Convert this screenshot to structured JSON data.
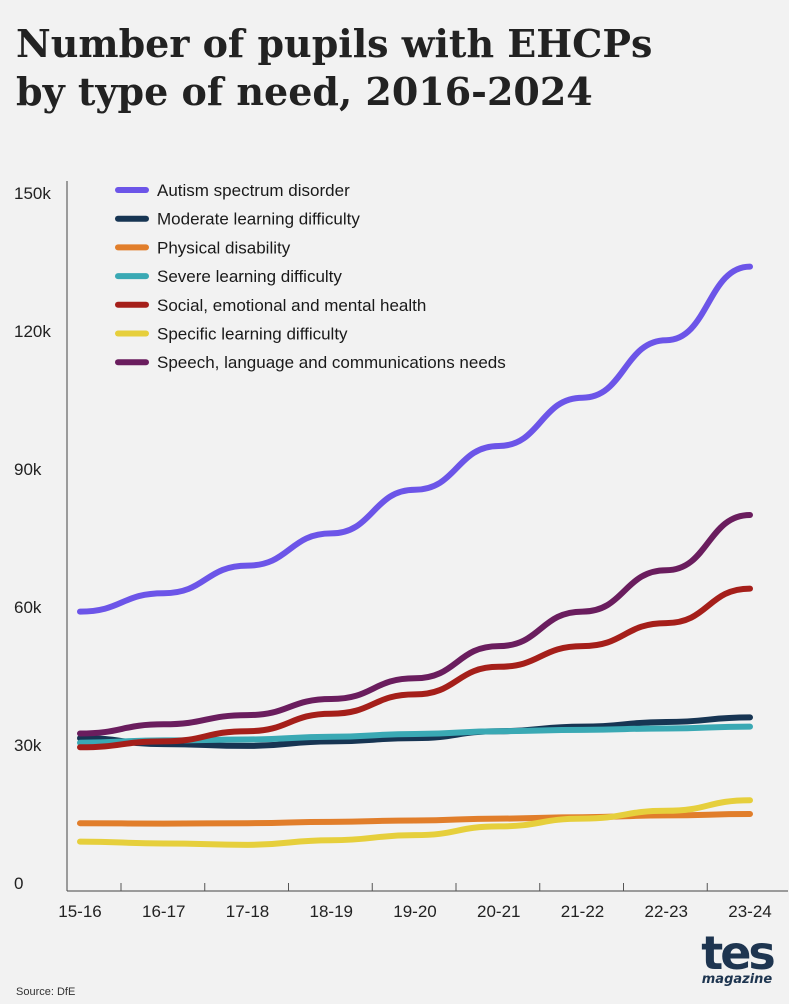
{
  "title_lines": [
    "Number of pupils with EHCPs",
    "by type of need, 2016-2024"
  ],
  "source": "Source: DfE",
  "brand": {
    "word": "tes",
    "sub": "magazine"
  },
  "chart_data": {
    "type": "line",
    "title": "Number of pupils with EHCPs by type of need, 2016-2024",
    "xlabel": "",
    "ylabel": "",
    "x": [
      "15-16",
      "16-17",
      "17-18",
      "18-19",
      "19-20",
      "20-21",
      "21-22",
      "22-23",
      "23-24"
    ],
    "ylim": [
      0,
      150000
    ],
    "yticks": [
      0,
      30000,
      60000,
      90000,
      120000,
      150000
    ],
    "ytick_labels": [
      "0",
      "30k",
      "60k",
      "90k",
      "120k",
      "150k"
    ],
    "grid": false,
    "legend_position": "top-left",
    "series": [
      {
        "name": "Autism spectrum disorder",
        "color": "#6c55e8",
        "values": [
          59000,
          63000,
          69000,
          76000,
          85500,
          95000,
          105500,
          118000,
          134000
        ]
      },
      {
        "name": "Moderate learning difficulty",
        "color": "#173553",
        "values": [
          31500,
          30200,
          29800,
          30800,
          31500,
          33000,
          34000,
          35000,
          36000
        ]
      },
      {
        "name": "Physical disability",
        "color": "#e17e2b",
        "values": [
          13000,
          12900,
          13000,
          13300,
          13600,
          14000,
          14300,
          14700,
          15000
        ]
      },
      {
        "name": "Severe learning difficulty",
        "color": "#3aa9b4",
        "values": [
          30500,
          31000,
          31200,
          31800,
          32400,
          33000,
          33300,
          33600,
          34000
        ]
      },
      {
        "name": "Social, emotional and mental health",
        "color": "#a51f1a",
        "values": [
          29500,
          30800,
          33000,
          36800,
          41000,
          47000,
          51500,
          56500,
          64000
        ]
      },
      {
        "name": "Specific learning difficulty",
        "color": "#e6cf3c",
        "values": [
          9000,
          8600,
          8300,
          9300,
          10400,
          12300,
          14000,
          15700,
          18000
        ]
      },
      {
        "name": "Speech, language and communications needs",
        "color": "#6a1d5e",
        "values": [
          32500,
          34500,
          36500,
          40000,
          44500,
          51500,
          59000,
          68000,
          80000
        ]
      }
    ]
  }
}
